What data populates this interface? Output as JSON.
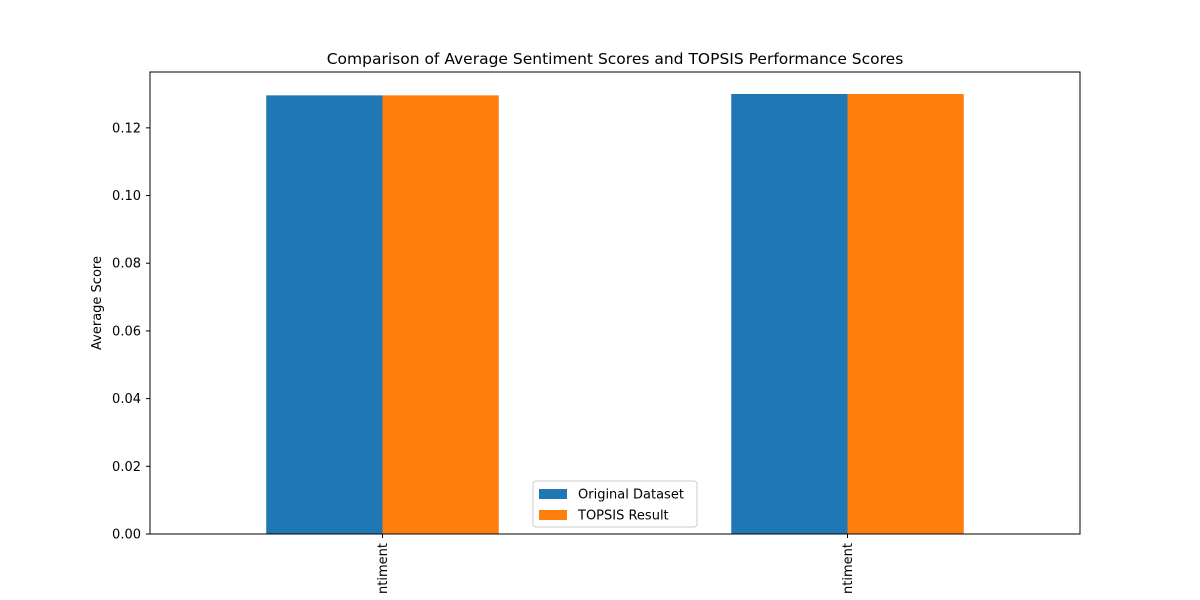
{
  "chart_data": {
    "type": "bar",
    "title": "Comparison of Average Sentiment Scores and TOPSIS Performance Scores",
    "xlabel": "",
    "ylabel": "Average Score",
    "categories": [
      "ntiment",
      "ntiment"
    ],
    "series": [
      {
        "name": "Original Dataset",
        "color": "#1f77b4",
        "values": [
          0.1296,
          0.13
        ]
      },
      {
        "name": "TOPSIS Result",
        "color": "#ff7f0e",
        "values": [
          0.1296,
          0.13
        ]
      }
    ],
    "ylim": [
      0,
      0.1365
    ],
    "yticks": [
      {
        "value": 0.0,
        "label": "0.00"
      },
      {
        "value": 0.02,
        "label": "0.02"
      },
      {
        "value": 0.04,
        "label": "0.04"
      },
      {
        "value": 0.06,
        "label": "0.06"
      },
      {
        "value": 0.08,
        "label": "0.08"
      },
      {
        "value": 0.1,
        "label": "0.10"
      },
      {
        "value": 0.12,
        "label": "0.12"
      }
    ],
    "grid": false,
    "legend_position": "bottom-center"
  }
}
